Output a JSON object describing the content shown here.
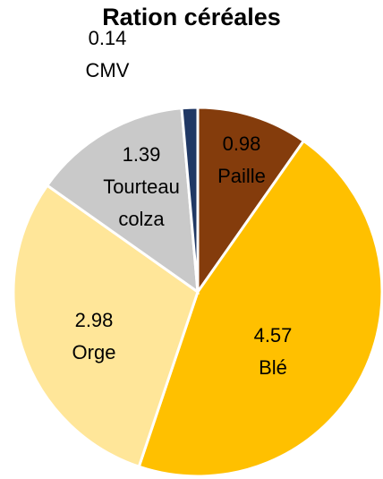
{
  "chart_data": {
    "type": "pie",
    "title": "Ration céréales",
    "categories": [
      "Paille",
      "Blé",
      "Orge",
      "Tourteau colza",
      "CMV"
    ],
    "values": [
      0.98,
      4.57,
      2.98,
      1.39,
      0.14
    ],
    "colors": [
      "#843c0c",
      "#ffc000",
      "#ffe699",
      "#c9c9c9",
      "#203864"
    ]
  }
}
